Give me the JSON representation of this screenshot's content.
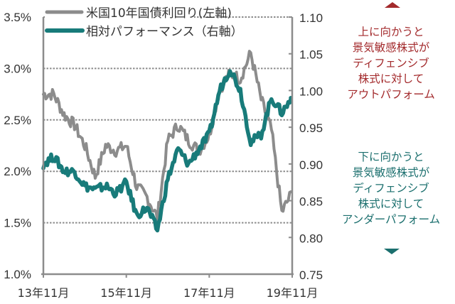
{
  "chart_data": {
    "type": "line",
    "title": "",
    "xlabel": "",
    "ylabel_left": "",
    "ylabel_right": "",
    "x_ticks": [
      "13年11月",
      "15年11月",
      "17年11月",
      "19年11月"
    ],
    "y_left": {
      "ticks": [
        "3.5%",
        "3.0%",
        "2.5%",
        "2.0%",
        "1.5%",
        "1.0%"
      ],
      "range": [
        1.0,
        3.5
      ]
    },
    "y_right": {
      "ticks": [
        "1.10",
        "1.05",
        "1.00",
        "0.95",
        "0.90",
        "0.85",
        "0.80",
        "0.75"
      ],
      "range": [
        0.75,
        1.1
      ]
    },
    "grid": "horizontal dotted at left-axis ticks",
    "legend_position": "top-left inside",
    "x": [
      "2013-11",
      "2014-02",
      "2014-05",
      "2014-08",
      "2014-11",
      "2015-02",
      "2015-05",
      "2015-08",
      "2015-11",
      "2016-02",
      "2016-05",
      "2016-08",
      "2016-11",
      "2017-02",
      "2017-05",
      "2017-08",
      "2017-11",
      "2018-02",
      "2018-05",
      "2018-08",
      "2018-11",
      "2019-02",
      "2019-05",
      "2019-08",
      "2019-11"
    ],
    "series": [
      {
        "name": "米国10年国債利回り(左軸)",
        "axis": "left",
        "color": "#8c8c8c",
        "values": [
          2.75,
          2.75,
          2.55,
          2.45,
          2.25,
          1.95,
          2.25,
          2.2,
          2.25,
          1.85,
          1.75,
          1.55,
          2.3,
          2.45,
          2.3,
          2.2,
          2.35,
          2.8,
          2.95,
          2.9,
          3.15,
          2.7,
          2.4,
          1.6,
          1.8
        ]
      },
      {
        "name": "相対パフォーマンス(右軸)",
        "axis": "right",
        "color": "#187b7a",
        "values": [
          0.9,
          0.91,
          0.89,
          0.89,
          0.87,
          0.865,
          0.87,
          0.86,
          0.875,
          0.83,
          0.84,
          0.81,
          0.88,
          0.92,
          0.9,
          0.92,
          0.94,
          1.0,
          1.03,
          1.0,
          0.93,
          0.94,
          0.99,
          0.97,
          0.99
        ]
      }
    ]
  },
  "legend": {
    "items": [
      {
        "label": "米国10年国債利回り(左軸)",
        "color": "#8c8c8c"
      },
      {
        "label": "相対パフォーマンス（右軸）",
        "color": "#187b7a"
      }
    ]
  },
  "annotations": {
    "up": {
      "color": "#a32a2c",
      "lines": [
        "上に向かうと",
        "景気敏感株式が",
        "ディフェンシブ",
        "株式に対して",
        "アウトパフォーム"
      ]
    },
    "down": {
      "color": "#1b6f6e",
      "lines": [
        "下に向かうと",
        "景気敏感株式が",
        "ディフェンシブ",
        "株式に対して",
        "アンダーパフォーム"
      ]
    }
  }
}
